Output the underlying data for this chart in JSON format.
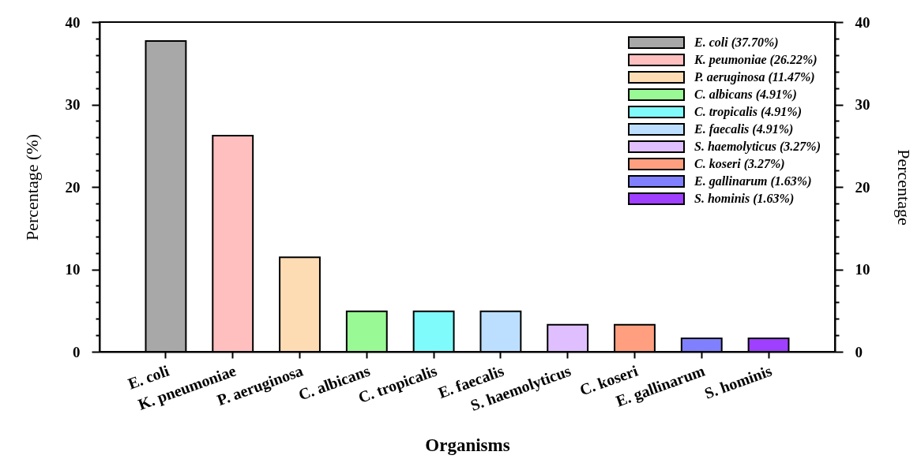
{
  "chart_data": {
    "type": "bar",
    "xlabel": "Organisms",
    "ylabel": "Percentage (%)",
    "y2label": "Percentage",
    "categories": [
      "E. coli",
      "K. pneumoniae",
      "P. aeruginosa",
      "C. albicans",
      "C. tropicalis",
      "E. faecalis",
      "S. haemolyticus",
      "C. koseri",
      "E. gallinarum",
      "S. hominis"
    ],
    "series": [
      {
        "name": "E. coli (37.70%)",
        "color": "#a8a8a8",
        "values": [
          37.7,
          null,
          null,
          null,
          null,
          null,
          null,
          null,
          null,
          null
        ]
      },
      {
        "name": "K. peumoniae (26.22%)",
        "color": "#ffbfbf",
        "values": [
          null,
          26.22,
          null,
          null,
          null,
          null,
          null,
          null,
          null,
          null
        ]
      },
      {
        "name": "P. aeruginosa (11.47%)",
        "color": "#fddcb4",
        "values": [
          null,
          null,
          11.47,
          null,
          null,
          null,
          null,
          null,
          null,
          null
        ]
      },
      {
        "name": "C. albicans (4.91%)",
        "color": "#99f994",
        "values": [
          null,
          null,
          null,
          4.91,
          null,
          null,
          null,
          null,
          null,
          null
        ]
      },
      {
        "name": "C. tropicalis (4.91%)",
        "color": "#80fbfb",
        "values": [
          null,
          null,
          null,
          null,
          4.91,
          null,
          null,
          null,
          null,
          null
        ]
      },
      {
        "name": "E. faecalis (4.91%)",
        "color": "#bddfff",
        "values": [
          null,
          null,
          null,
          null,
          null,
          4.91,
          null,
          null,
          null,
          null
        ]
      },
      {
        "name": "S. haemolyticus (3.27%)",
        "color": "#dfbfff",
        "values": [
          null,
          null,
          null,
          null,
          null,
          null,
          3.27,
          null,
          null,
          null
        ]
      },
      {
        "name": "C. koseri (3.27%)",
        "color": "#ff9f7f",
        "values": [
          null,
          null,
          null,
          null,
          null,
          null,
          null,
          3.27,
          null,
          null
        ]
      },
      {
        "name": "E. gallinarum (1.63%)",
        "color": "#8080ff",
        "values": [
          null,
          null,
          null,
          null,
          null,
          null,
          null,
          null,
          1.63,
          null
        ]
      },
      {
        "name": "S. hominis (1.63%)",
        "color": "#9f3fff",
        "values": [
          null,
          null,
          null,
          null,
          null,
          null,
          null,
          null,
          null,
          1.63
        ]
      }
    ],
    "stacked": true,
    "ylim": [
      0,
      40
    ],
    "yticks": [
      0,
      {
        "value": 2,
        "label": null
      },
      {
        "value": 4,
        "label": null
      },
      {
        "value": 6,
        "label": null
      },
      {
        "value": 8,
        "label": null
      },
      10,
      {
        "value": 12,
        "label": null
      },
      {
        "value": 14,
        "label": null
      },
      {
        "value": 16,
        "label": null
      },
      {
        "value": 18,
        "label": null
      },
      20,
      {
        "value": 22,
        "label": null
      },
      {
        "value": 24,
        "label": null
      },
      {
        "value": 26,
        "label": null
      },
      {
        "value": 28,
        "label": null
      },
      30,
      {
        "value": 32,
        "label": null
      },
      {
        "value": 34,
        "label": null
      },
      {
        "value": 36,
        "label": null
      },
      {
        "value": 38,
        "label": null
      },
      40
    ],
    "y2lim": [
      0,
      40
    ],
    "y2ticks": [
      0,
      {
        "value": 2,
        "label": null
      },
      {
        "value": 4,
        "label": null
      },
      {
        "value": 6,
        "label": null
      },
      {
        "value": 8,
        "label": null
      },
      10,
      {
        "value": 12,
        "label": null
      },
      {
        "value": 14,
        "label": null
      },
      {
        "value": 16,
        "label": null
      },
      {
        "value": 18,
        "label": null
      },
      20,
      {
        "value": 22,
        "label": null
      },
      {
        "value": 24,
        "label": null
      },
      {
        "value": 26,
        "label": null
      },
      {
        "value": 28,
        "label": null
      },
      30,
      {
        "value": 32,
        "label": null
      },
      {
        "value": 34,
        "label": null
      },
      {
        "value": 36,
        "label": null
      },
      {
        "value": 38,
        "label": null
      },
      40
    ],
    "legend": "top right",
    "grid": false
  }
}
